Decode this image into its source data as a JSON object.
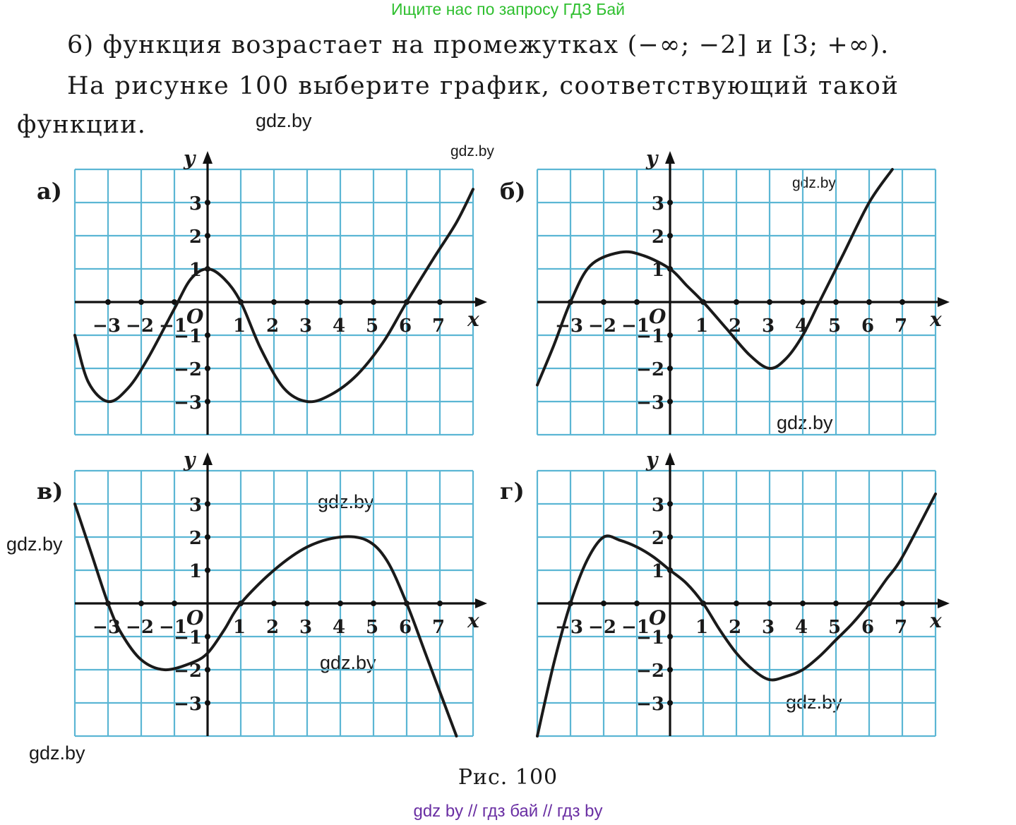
{
  "header": {
    "banner": "Ищите нас по запросу ГДЗ Бай"
  },
  "task": {
    "item": "6) функция возрастает на промежутках (−∞; −2] и [3; +∞).",
    "instruction_line1": "На рисунке 100 выберите график, соответствующий такой",
    "instruction_line2": "функции."
  },
  "watermarks": {
    "wm1": "gdz.by",
    "wm2": "gdz.by",
    "wm3": "gdz.by",
    "wm4": "gdz.by",
    "wm5": "gdz.by",
    "wm6": "gdz.by",
    "wm7": "gdz.by",
    "wm8": "gdz.by",
    "wm9": "gdz.by"
  },
  "caption": "Рис. 100",
  "footer": "gdz by  //  гдз бай  //  гдз by",
  "colors": {
    "grid": "#5bb6d4",
    "banner": "#2ebf2e",
    "footer": "#6a2fa3",
    "ink": "#1a1a1a"
  },
  "chart_data": [
    {
      "type": "line",
      "panel_label": "а)",
      "x_axis_label": "x",
      "y_axis_label": "y",
      "origin_label": "O",
      "x_ticks": [
        "−3",
        "−2",
        "−1",
        "1",
        "2",
        "3",
        "4",
        "5",
        "6",
        "7"
      ],
      "y_ticks": [
        "3",
        "2",
        "1",
        "−1",
        "−2",
        "−3"
      ],
      "xlim": [
        -4,
        8
      ],
      "ylim": [
        -4,
        4
      ],
      "grid": true,
      "series": [
        {
          "x": [
            -4,
            -3.6,
            -3,
            -2.4,
            -1.8,
            -1,
            -0.5,
            0,
            0.5,
            1,
            1.6,
            2.3,
            3,
            3.7,
            4.5,
            5.3,
            6,
            6.8,
            7.5,
            8
          ],
          "y": [
            -1,
            -2.4,
            -3,
            -2.6,
            -1.7,
            -0.2,
            0.7,
            1,
            0.7,
            0,
            -1.4,
            -2.6,
            -3,
            -2.8,
            -2.2,
            -1.2,
            0,
            1.3,
            2.4,
            3.4
          ]
        }
      ]
    },
    {
      "type": "line",
      "panel_label": "б)",
      "x_axis_label": "x",
      "y_axis_label": "y",
      "origin_label": "O",
      "x_ticks": [
        "−3",
        "−2",
        "−1",
        "1",
        "2",
        "3",
        "4",
        "5",
        "6",
        "7"
      ],
      "y_ticks": [
        "3",
        "2",
        "1",
        "−1",
        "−2",
        "−3"
      ],
      "xlim": [
        -4,
        8
      ],
      "ylim": [
        -4,
        4
      ],
      "grid": true,
      "series": [
        {
          "x": [
            -4,
            -3.5,
            -3,
            -2.4,
            -1.5,
            -0.8,
            0,
            0.5,
            1,
            1.7,
            2.4,
            3,
            3.5,
            4,
            4.5,
            5.2,
            6,
            6.7
          ],
          "y": [
            -2.5,
            -1.3,
            0,
            1.1,
            1.5,
            1.4,
            1,
            0.5,
            0,
            -0.8,
            -1.6,
            -2,
            -1.7,
            -1,
            0,
            1.4,
            3,
            4
          ]
        }
      ]
    },
    {
      "type": "line",
      "panel_label": "в)",
      "x_axis_label": "x",
      "y_axis_label": "y",
      "origin_label": "O",
      "x_ticks": [
        "−3",
        "−2",
        "−1",
        "1",
        "2",
        "3",
        "4",
        "5",
        "6",
        "7"
      ],
      "y_ticks": [
        "3",
        "2",
        "1",
        "−1",
        "−2",
        "−3"
      ],
      "xlim": [
        -4,
        8
      ],
      "ylim": [
        -4,
        4
      ],
      "grid": true,
      "series": [
        {
          "x": [
            -4,
            -3.5,
            -3,
            -2.6,
            -2,
            -1.3,
            -0.5,
            0,
            0.5,
            1,
            2,
            3,
            4,
            4.8,
            5.4,
            6,
            6.6,
            7.5
          ],
          "y": [
            3,
            1.5,
            0,
            -0.9,
            -1.7,
            -2,
            -1.8,
            -1.5,
            -0.8,
            0,
            1,
            1.7,
            2,
            1.9,
            1.3,
            0,
            -1.6,
            -4
          ]
        }
      ]
    },
    {
      "type": "line",
      "panel_label": "г)",
      "x_axis_label": "x",
      "y_axis_label": "y",
      "origin_label": "O",
      "x_ticks": [
        "−3",
        "−2",
        "−1",
        "1",
        "2",
        "3",
        "4",
        "5",
        "6",
        "7"
      ],
      "y_ticks": [
        "3",
        "2",
        "1",
        "−1",
        "−2",
        "−3"
      ],
      "xlim": [
        -4,
        8
      ],
      "ylim": [
        -4,
        4
      ],
      "grid": true,
      "series": [
        {
          "x": [
            -4,
            -3.5,
            -3,
            -2.5,
            -2,
            -1.5,
            -1,
            -0.5,
            0,
            0.5,
            1,
            1.5,
            2,
            2.5,
            3,
            3.5,
            4,
            4.5,
            5,
            5.5,
            6,
            6.5,
            7,
            8
          ],
          "y": [
            -4,
            -1.8,
            0,
            1.3,
            2,
            1.9,
            1.7,
            1.4,
            1,
            0.6,
            0,
            -0.8,
            -1.5,
            -2,
            -2.3,
            -2.2,
            -2,
            -1.6,
            -1.1,
            -0.6,
            0,
            0.7,
            1.4,
            3.3
          ]
        }
      ]
    }
  ]
}
